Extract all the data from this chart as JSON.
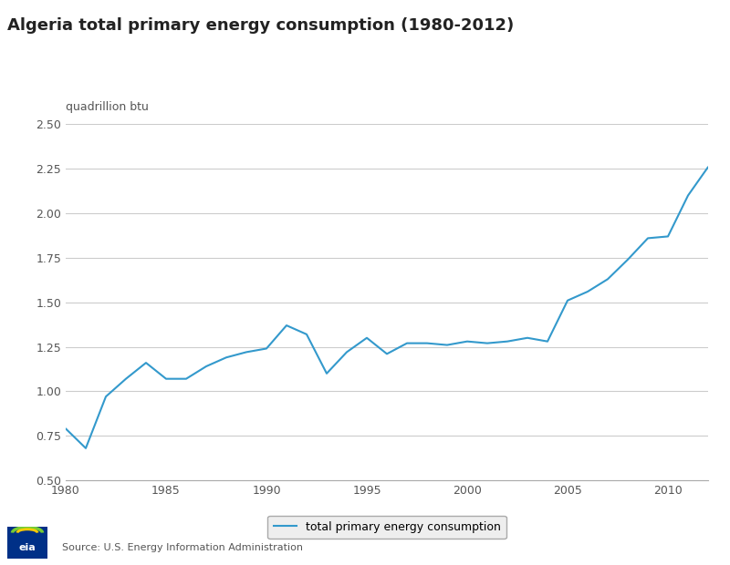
{
  "title": "Algeria total primary energy consumption (1980-2012)",
  "ylabel": "quadrillion btu",
  "source": "Source: U.S. Energy Information Administration",
  "line_color": "#3399cc",
  "line_label": "total primary energy consumption",
  "background_color": "#ffffff",
  "grid_color": "#cccccc",
  "years": [
    1980,
    1981,
    1982,
    1983,
    1984,
    1985,
    1986,
    1987,
    1988,
    1989,
    1990,
    1991,
    1992,
    1993,
    1994,
    1995,
    1996,
    1997,
    1998,
    1999,
    2000,
    2001,
    2002,
    2003,
    2004,
    2005,
    2006,
    2007,
    2008,
    2009,
    2010,
    2011,
    2012
  ],
  "values": [
    0.79,
    0.68,
    0.97,
    1.07,
    1.16,
    1.07,
    1.07,
    1.14,
    1.19,
    1.22,
    1.24,
    1.37,
    1.32,
    1.1,
    1.22,
    1.3,
    1.21,
    1.27,
    1.27,
    1.26,
    1.28,
    1.27,
    1.28,
    1.3,
    1.28,
    1.51,
    1.56,
    1.63,
    1.74,
    1.86,
    1.87,
    2.1,
    2.26
  ],
  "xlim": [
    1980,
    2012
  ],
  "ylim": [
    0.5,
    2.5
  ],
  "yticks": [
    0.5,
    0.75,
    1.0,
    1.25,
    1.5,
    1.75,
    2.0,
    2.25,
    2.5
  ],
  "xticks": [
    1980,
    1985,
    1990,
    1995,
    2000,
    2005,
    2010
  ],
  "title_fontsize": 13,
  "label_fontsize": 9,
  "tick_fontsize": 9,
  "legend_fontsize": 9,
  "source_fontsize": 8,
  "legend_border_color": "#aaaaaa",
  "legend_bg_color": "#eeeeee",
  "tick_color": "#555555",
  "spine_color": "#aaaaaa"
}
